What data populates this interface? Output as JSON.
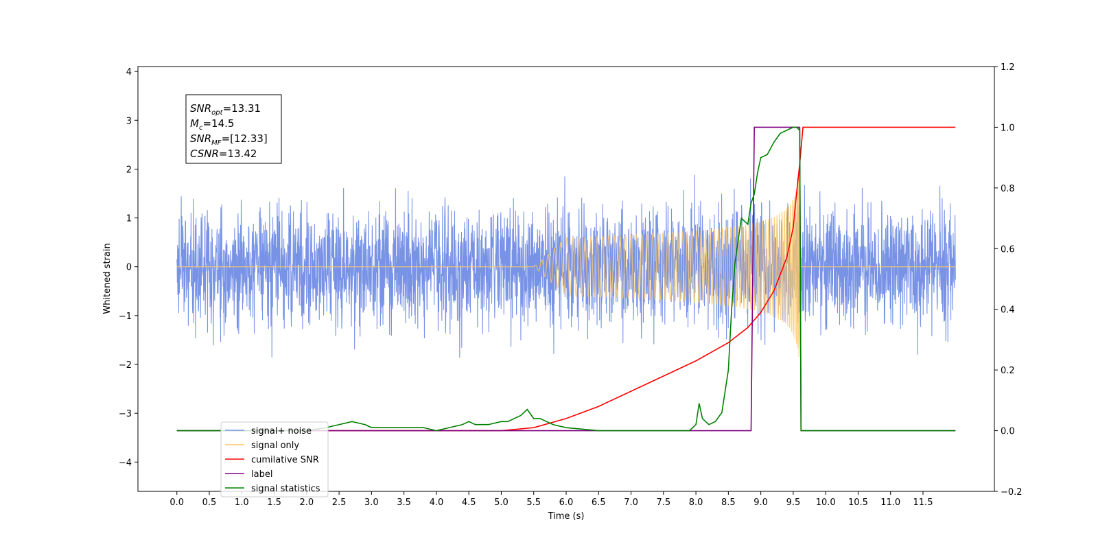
{
  "chart_data": {
    "type": "line",
    "xlabel": "Time (s)",
    "ylabel": "Whitened strain",
    "xlim": [
      -0.6,
      12.6
    ],
    "ylim": [
      -4.6,
      4.1
    ],
    "ylim_right": [
      -0.2,
      1.2
    ],
    "x_ticks": [
      "0.0",
      "0.5",
      "1.0",
      "1.5",
      "2.0",
      "2.5",
      "3.0",
      "3.5",
      "4.0",
      "4.5",
      "5.0",
      "5.5",
      "6.0",
      "6.5",
      "7.0",
      "7.5",
      "8.0",
      "8.5",
      "9.0",
      "9.5",
      "10.0",
      "10.5",
      "11.0",
      "11.5"
    ],
    "y_ticks": [
      "4",
      "3",
      "2",
      "1",
      "0",
      "−1",
      "−2",
      "−3",
      "−4"
    ],
    "y_ticks_right": [
      "1.2",
      "1.0",
      "0.8",
      "0.6",
      "0.4",
      "0.2",
      "0.0",
      "−0.2"
    ],
    "annotation": {
      "lines": [
        {
          "base": "SNR",
          "sub": "opt",
          "rest": "=13.31"
        },
        {
          "base": "M",
          "sub": "c",
          "rest": "=14.5"
        },
        {
          "base": "SNR",
          "sub": "MF",
          "rest": "=[12.33]"
        },
        {
          "base": "CSNR",
          "sub": "",
          "rest": "=13.42"
        }
      ]
    },
    "legend": {
      "placement": "lower-left",
      "entries": [
        {
          "label": "signal+ noise",
          "color": "#7893e6"
        },
        {
          "label": "signal only",
          "color": "#ffc966"
        },
        {
          "label": "cumilative SNR",
          "color": "#ff0000"
        },
        {
          "label": "label",
          "color": "#800080"
        },
        {
          "label": "signal statistics",
          "color": "#008000"
        }
      ]
    },
    "series": [
      {
        "name": "signal+ noise",
        "axis": "left",
        "color": "#7893e6",
        "kind": "noise",
        "x_range": [
          0.0,
          12.0
        ],
        "envelope": [
          [
            0.0,
            2.5
          ],
          [
            3.0,
            3.5
          ],
          [
            6.0,
            3.6
          ],
          [
            9.5,
            3.6
          ],
          [
            12.0,
            2.4
          ]
        ]
      },
      {
        "name": "signal only",
        "axis": "left",
        "color": "#ffc966",
        "kind": "chirp",
        "t_start": 5.5,
        "t_merge": 9.6,
        "peak_amplitude": 2.2
      },
      {
        "name": "cumilative SNR",
        "axis": "right",
        "color": "#ff0000",
        "x": [
          0.0,
          5.0,
          5.5,
          6.0,
          6.5,
          7.0,
          7.5,
          8.0,
          8.5,
          8.8,
          9.0,
          9.2,
          9.4,
          9.5,
          9.55,
          9.6,
          9.65,
          12.0
        ],
        "y": [
          0.0,
          0.0,
          0.01,
          0.04,
          0.08,
          0.13,
          0.18,
          0.23,
          0.29,
          0.34,
          0.39,
          0.46,
          0.57,
          0.67,
          0.78,
          0.88,
          1.0,
          1.0
        ]
      },
      {
        "name": "label",
        "axis": "right",
        "color": "#800080",
        "x": [
          0.0,
          8.85,
          8.9,
          9.6,
          9.62,
          12.0
        ],
        "y": [
          0.0,
          0.0,
          1.0,
          1.0,
          0.0,
          0.0
        ]
      },
      {
        "name": "signal statistics",
        "axis": "right",
        "color": "#008000",
        "x": [
          0.0,
          1.5,
          2.0,
          2.3,
          2.5,
          2.7,
          2.9,
          3.0,
          3.2,
          3.4,
          3.5,
          3.8,
          4.0,
          4.2,
          4.4,
          4.5,
          4.6,
          4.8,
          5.0,
          5.1,
          5.3,
          5.4,
          5.5,
          5.6,
          5.8,
          6.0,
          6.5,
          7.0,
          7.5,
          7.9,
          8.0,
          8.05,
          8.1,
          8.15,
          8.2,
          8.3,
          8.4,
          8.5,
          8.55,
          8.6,
          8.7,
          8.8,
          8.85,
          8.9,
          8.95,
          9.0,
          9.1,
          9.2,
          9.3,
          9.4,
          9.5,
          9.55,
          9.6,
          9.62,
          9.65,
          12.0
        ],
        "y": [
          0.0,
          0.0,
          0.0,
          0.01,
          0.02,
          0.03,
          0.02,
          0.01,
          0.01,
          0.01,
          0.01,
          0.01,
          0.0,
          0.01,
          0.02,
          0.03,
          0.02,
          0.02,
          0.03,
          0.03,
          0.05,
          0.07,
          0.04,
          0.04,
          0.02,
          0.01,
          0.0,
          0.0,
          0.0,
          0.0,
          0.02,
          0.09,
          0.04,
          0.03,
          0.02,
          0.03,
          0.06,
          0.2,
          0.4,
          0.55,
          0.7,
          0.68,
          0.75,
          0.78,
          0.85,
          0.9,
          0.91,
          0.95,
          0.98,
          0.99,
          1.0,
          1.0,
          0.99,
          0.0,
          0.0,
          0.0
        ]
      }
    ]
  }
}
